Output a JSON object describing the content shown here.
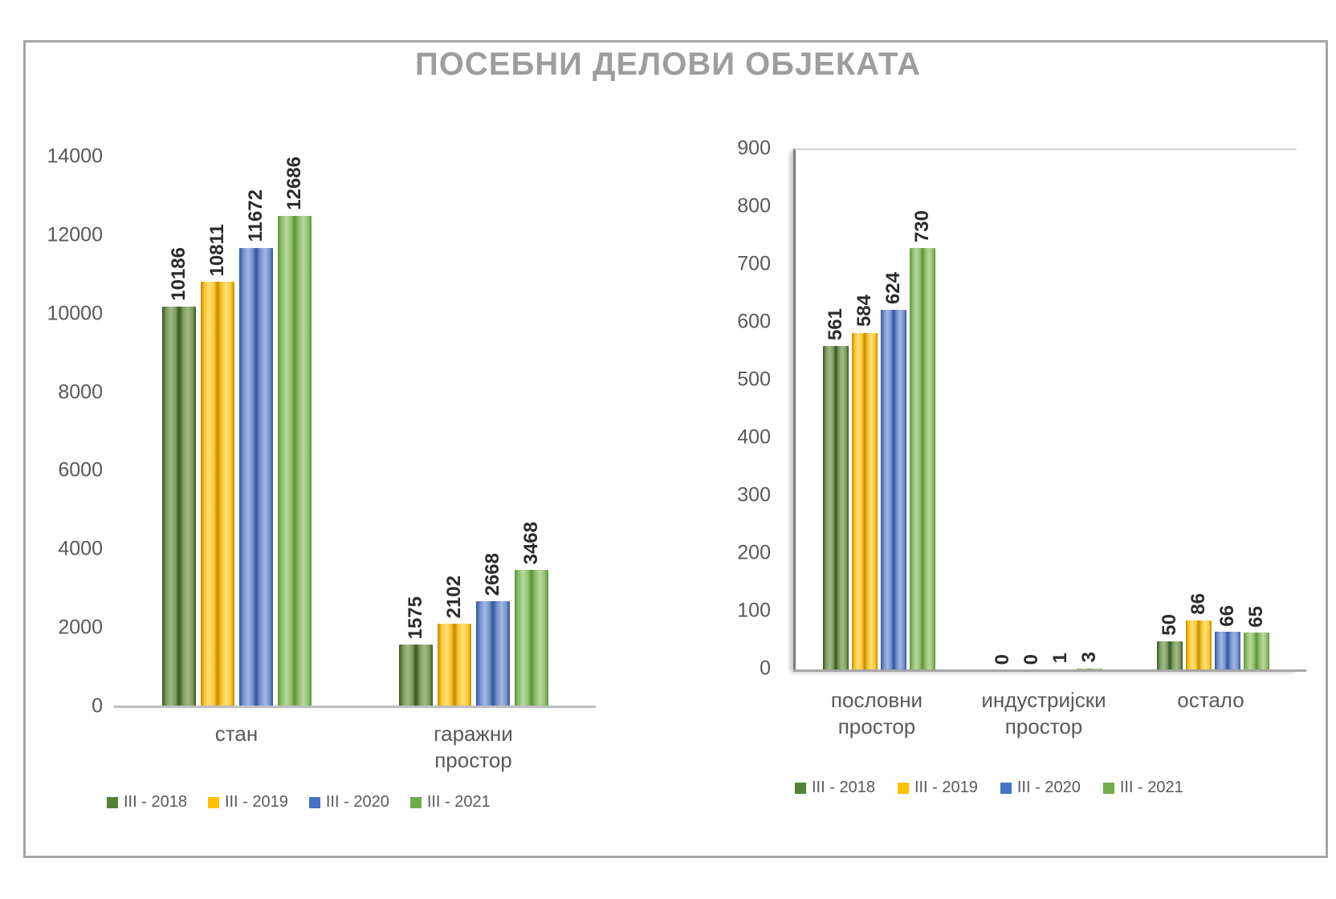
{
  "chart_title": "ПОСЕБНИ ДЕЛОВИ ОБЈЕКАТА",
  "title_color": "#9d9d9d",
  "frame_border_color": "#a6a6a6",
  "chart_data": [
    {
      "type": "bar",
      "name": "left-chart",
      "title": "",
      "categories": [
        "стан",
        "гаражни простор"
      ],
      "series": [
        {
          "name": "III - 2018",
          "color": "#548235",
          "values": [
            10186,
            1575
          ]
        },
        {
          "name": "III - 2019",
          "color": "#ffc000",
          "values": [
            10811,
            2102
          ]
        },
        {
          "name": "III - 2020",
          "color": "#4472c4",
          "values": [
            11672,
            2668
          ]
        },
        {
          "name": "III - 2021",
          "color": "#70ad47",
          "values": [
            12686,
            3468
          ]
        }
      ],
      "ylim": [
        0,
        14000
      ],
      "yticks": [
        "0",
        "2000",
        "4000",
        "6000",
        "8000",
        "10000",
        "12000",
        "14000"
      ],
      "grid": false,
      "data_labels": "rotated-vertical",
      "legend_position": "bottom"
    },
    {
      "type": "bar",
      "name": "right-chart",
      "title": "",
      "categories": [
        "пословни простор",
        "индустријски простор",
        "остало"
      ],
      "series": [
        {
          "name": "III - 2018",
          "color": "#548235",
          "values": [
            561,
            0,
            50
          ]
        },
        {
          "name": "III - 2019",
          "color": "#ffc000",
          "values": [
            584,
            0,
            86
          ]
        },
        {
          "name": "III - 2020",
          "color": "#4472c4",
          "values": [
            624,
            1,
            66
          ]
        },
        {
          "name": "III - 2021",
          "color": "#70ad47",
          "values": [
            730,
            3,
            65
          ]
        }
      ],
      "ylim": [
        0,
        900
      ],
      "yticks": [
        "0",
        "100",
        "200",
        "300",
        "400",
        "500",
        "600",
        "700",
        "800",
        "900"
      ],
      "grid": false,
      "data_labels": "rotated-vertical",
      "legend_position": "bottom",
      "plot_area_border": true
    }
  ]
}
